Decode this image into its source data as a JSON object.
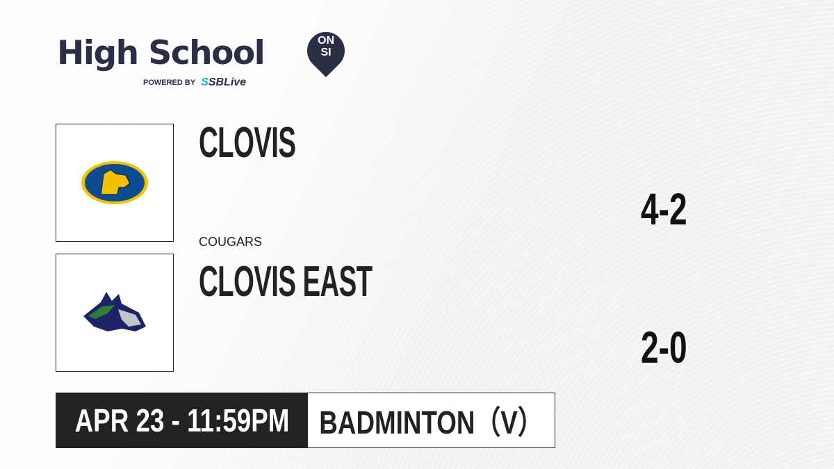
{
  "brand": {
    "title": "High School",
    "badge_line1": "ON",
    "badge_line2": "SI",
    "powered_by": "POWERED BY",
    "partner_prefix": "S",
    "partner": "SBLive"
  },
  "teams": [
    {
      "name": "CLOVIS",
      "mascot": "COUGARS",
      "record": "4-2",
      "logo": "cougar-logo",
      "colors": [
        "#0e4c92",
        "#f2c200"
      ]
    },
    {
      "name": "CLOVIS EAST",
      "record": "2-0",
      "logo": "timberwolf-logo",
      "colors": [
        "#1c2366",
        "#2e7d32",
        "#c0c6cc"
      ]
    }
  ],
  "game": {
    "datetime": "APR 23 - 11:59PM",
    "sport": "BADMINTON（V）"
  }
}
